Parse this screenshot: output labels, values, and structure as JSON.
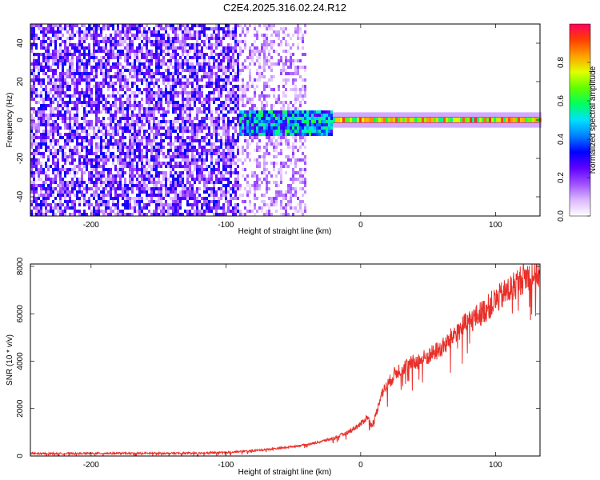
{
  "title": "C2E4.2025.316.02.24.R12",
  "chart_data": [
    {
      "type": "heatmap",
      "xlabel": "Height of straight line (km)",
      "ylabel": "Frequency (Hz)",
      "xlim": [
        -245,
        133
      ],
      "ylim": [
        -50,
        50
      ],
      "xticks": [
        -200,
        -100,
        0,
        100
      ],
      "yticks": [
        -40,
        -20,
        0,
        20,
        40
      ],
      "colorbar": {
        "label": "Normalized spectral amplitude",
        "range": [
          0,
          1
        ],
        "ticks": [
          "0.0",
          "0.2",
          "0.4",
          "0.6",
          "0.8"
        ],
        "colormap": [
          "#ffffff",
          "#dcb8ff",
          "#a050ff",
          "#6000ff",
          "#0000ff",
          "#0080ff",
          "#00e0ff",
          "#00ff60",
          "#60ff00",
          "#e0ff00",
          "#ffa000",
          "#ff4000",
          "#ff0060"
        ]
      },
      "regions": [
        {
          "x_range": [
            -245,
            -90
          ],
          "y_range": [
            -50,
            50
          ],
          "description": "broadband noise",
          "amplitude": 0.22
        },
        {
          "x_range": [
            -90,
            -40
          ],
          "y_range": [
            -50,
            50
          ],
          "description": "fading noise",
          "amplitude": 0.12
        },
        {
          "x_range": [
            -90,
            -20
          ],
          "y_range": [
            -8,
            5
          ],
          "description": "emerging carrier",
          "amplitude": 0.45
        },
        {
          "x_range": [
            -20,
            133
          ],
          "y_range": [
            -1.5,
            1.5
          ],
          "description": "stable carrier near 0 Hz",
          "amplitude": 0.97
        }
      ]
    },
    {
      "type": "line",
      "xlabel": "Height of straight line (km)",
      "ylabel": "SNR (10 * v/v)",
      "xlim": [
        -245,
        133
      ],
      "ylim": [
        0,
        8100
      ],
      "xticks": [
        -200,
        -100,
        0,
        100
      ],
      "yticks": [
        0,
        2000,
        4000,
        6000,
        8000
      ],
      "color": "#e8302a",
      "series": [
        {
          "x": [
            -245,
            -200,
            -150,
            -120,
            -100,
            -80,
            -60,
            -40,
            -30,
            -20,
            -10,
            0,
            5,
            8,
            10,
            13,
            15,
            20,
            25,
            30,
            40,
            50,
            60,
            65,
            70,
            80,
            90,
            100,
            110,
            120,
            133
          ],
          "values": [
            100,
            110,
            115,
            120,
            150,
            220,
            330,
            480,
            600,
            750,
            980,
            1350,
            1650,
            1300,
            1500,
            2100,
            2600,
            3000,
            3450,
            3700,
            3950,
            4200,
            4550,
            4800,
            5200,
            5650,
            6050,
            6550,
            7000,
            7500,
            7800
          ]
        }
      ]
    }
  ]
}
